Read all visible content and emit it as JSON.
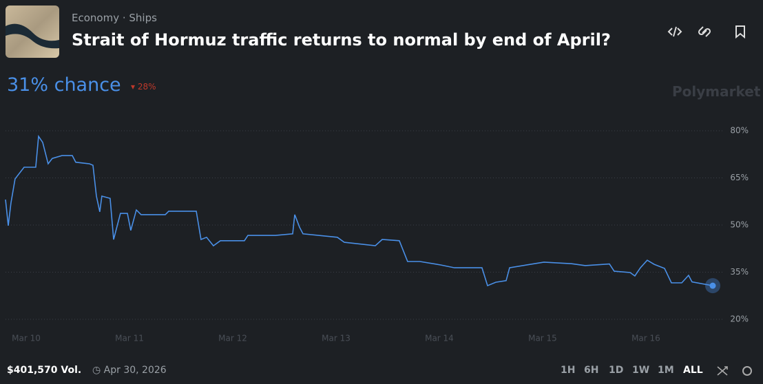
{
  "header": {
    "category": "Economy",
    "subcategory": "Ships",
    "title": "Strait of Hormuz traffic returns to normal by end of April?"
  },
  "odds": {
    "chance": "31% chance",
    "change": "28%"
  },
  "brand": "Polymarket",
  "footer": {
    "volume": "$401,570 Vol.",
    "end_date": "Apr 30, 2026",
    "ranges": [
      "1H",
      "6H",
      "1D",
      "1W",
      "1M",
      "ALL"
    ],
    "active_range": "ALL"
  },
  "chart_data": {
    "type": "line",
    "color": "#4a90e8",
    "grid": true,
    "x": [
      9.8,
      9.827,
      9.853,
      9.893,
      9.98,
      10.093,
      10.12,
      10.16,
      10.213,
      10.253,
      10.347,
      10.447,
      10.48,
      10.613,
      10.647,
      10.68,
      10.713,
      10.733,
      10.813,
      10.847,
      10.913,
      10.98,
      11.013,
      11.067,
      11.113,
      11.347,
      11.38,
      11.647,
      11.693,
      11.747,
      11.813,
      11.88,
      12.113,
      12.147,
      12.413,
      12.58,
      12.6,
      12.647,
      12.68,
      13.013,
      13.08,
      13.38,
      13.447,
      13.613,
      13.693,
      13.813,
      14.013,
      14.147,
      14.413,
      14.467,
      14.547,
      14.647,
      14.68,
      15.013,
      15.28,
      15.413,
      15.647,
      15.693,
      15.847,
      15.893,
      15.947,
      16.013,
      16.08,
      16.18,
      16.247,
      16.347,
      16.413,
      16.447,
      16.647
    ],
    "values": [
      58.1,
      49.8,
      57,
      64.7,
      68.4,
      68.4,
      78.2,
      76.3,
      69.5,
      71.2,
      72.1,
      72.1,
      70,
      69.5,
      69,
      59.2,
      54.2,
      59.2,
      58.5,
      45.4,
      53.7,
      53.7,
      48.3,
      54.8,
      53.3,
      53.3,
      54.4,
      54.4,
      45.4,
      46.1,
      43.4,
      45,
      45,
      46.7,
      46.7,
      47.2,
      53.3,
      49.3,
      47.2,
      46.1,
      44.5,
      43.4,
      45.4,
      45,
      38.4,
      38.4,
      37.3,
      36.4,
      36.4,
      30.7,
      31.8,
      32.3,
      36.4,
      38.2,
      37.7,
      37.1,
      37.6,
      35.3,
      34.9,
      33.8,
      36.4,
      38.8,
      37.5,
      36.2,
      31.6,
      31.6,
      34,
      31.9,
      30.7
    ],
    "xlim": [
      9.8,
      16.667
    ],
    "xticks": [
      {
        "value": 10,
        "label": "Mar 10"
      },
      {
        "value": 11,
        "label": "Mar 11"
      },
      {
        "value": 12,
        "label": "Mar 12"
      },
      {
        "value": 13,
        "label": "Mar 13"
      },
      {
        "value": 14,
        "label": "Mar 14"
      },
      {
        "value": 15,
        "label": "Mar 15"
      },
      {
        "value": 16,
        "label": "Mar 16"
      }
    ],
    "ylim": [
      20,
      80
    ],
    "yticks": [
      {
        "value": 80,
        "label": "80%"
      },
      {
        "value": 65,
        "label": "65%"
      },
      {
        "value": 50,
        "label": "50%"
      },
      {
        "value": 35,
        "label": "35%"
      },
      {
        "value": 20,
        "label": "20%"
      }
    ]
  }
}
